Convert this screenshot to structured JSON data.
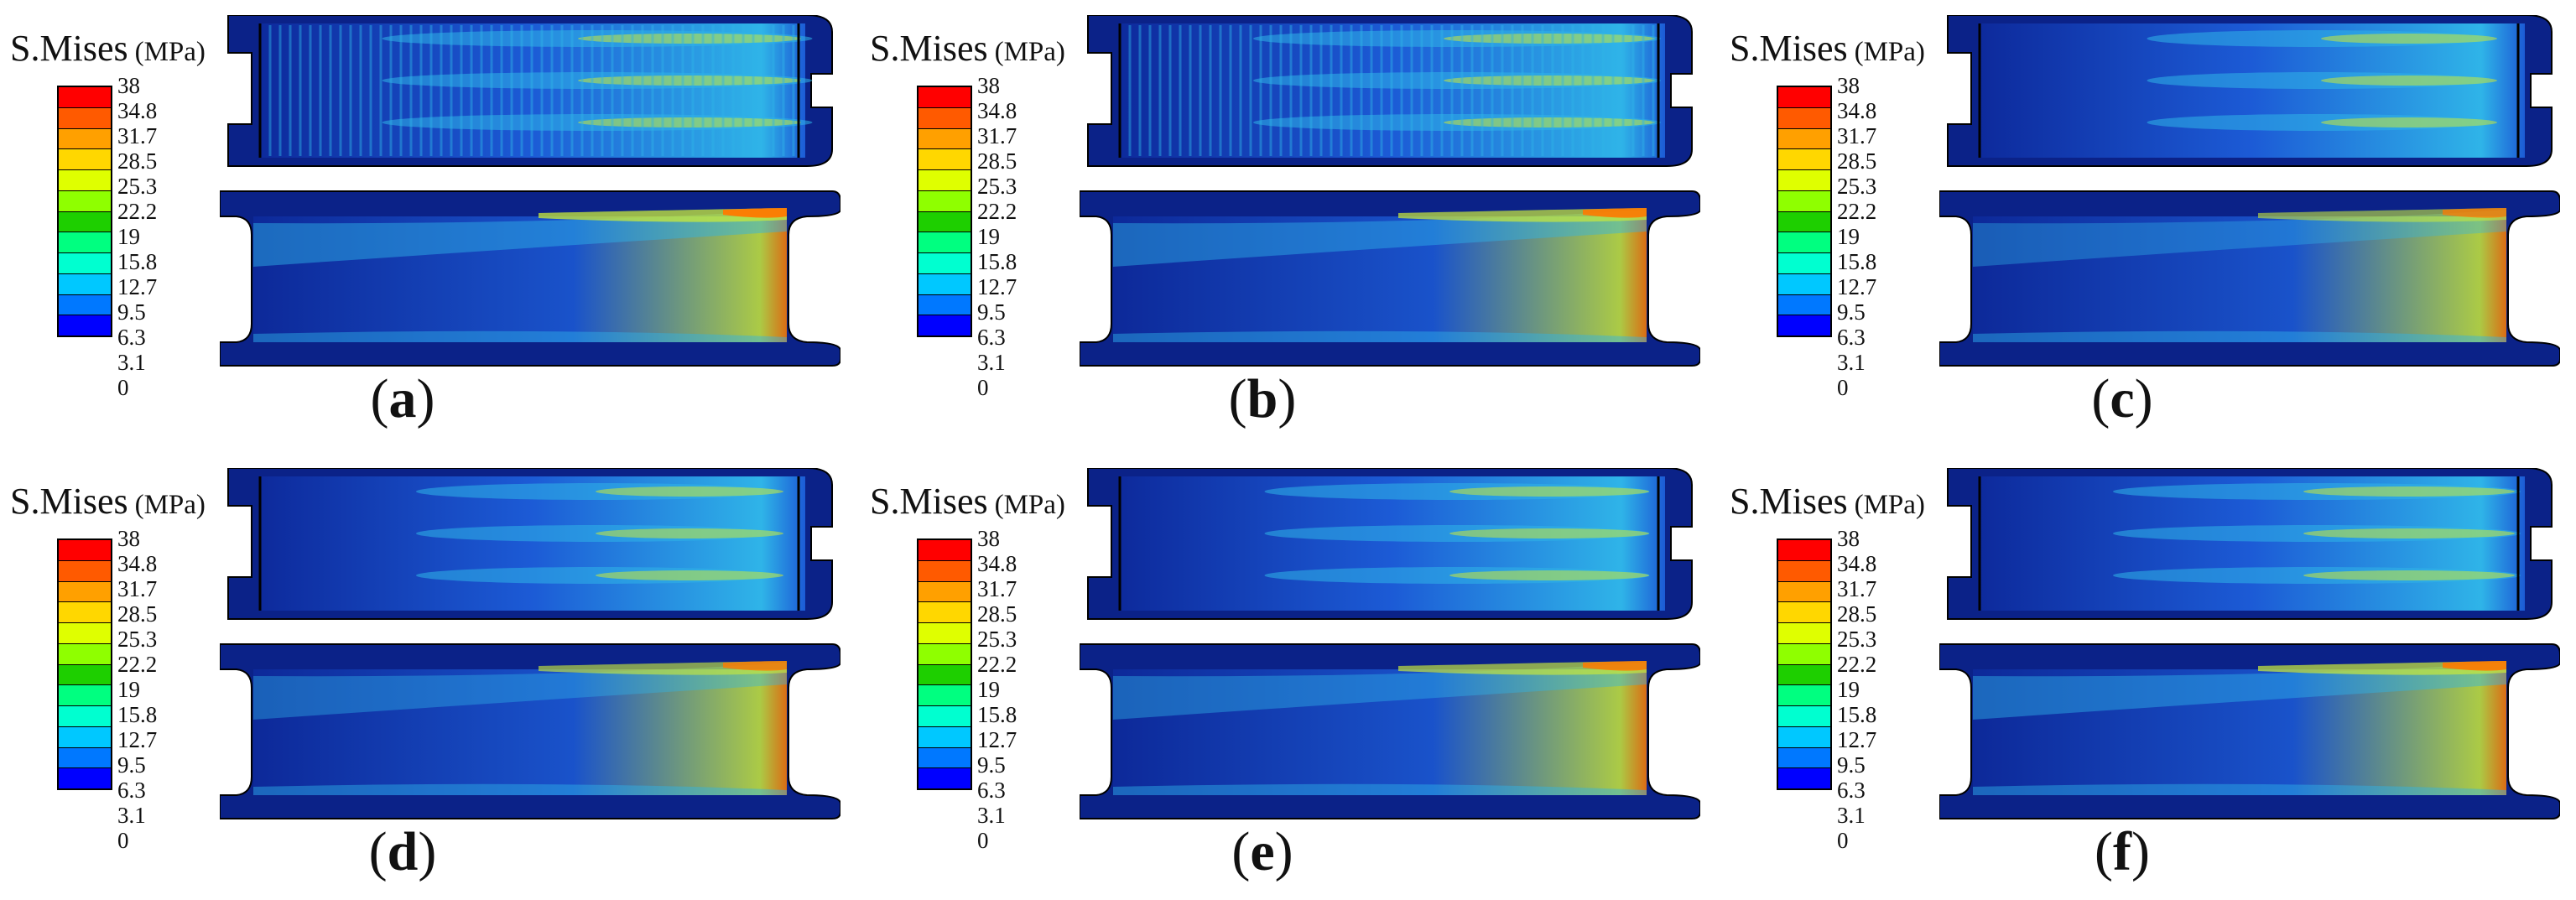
{
  "legend": {
    "title": "S.Mises",
    "unit": "(MPa)",
    "ticks": [
      "38",
      "34.8",
      "31.7",
      "28.5",
      "25.3",
      "22.2",
      "19",
      "15.8",
      "12.7",
      "9.5",
      "6.3",
      "3.1",
      "0"
    ],
    "colors": [
      "#ff0000",
      "#ff5a00",
      "#ffa000",
      "#ffd700",
      "#dfff00",
      "#8fff00",
      "#1ecf00",
      "#00ff80",
      "#00ffd0",
      "#00c8ff",
      "#0078ff",
      "#0000ff"
    ]
  },
  "colors": {
    "base": "#0d2a9c",
    "mid": "#1c5bd6",
    "light": "#2fb4e8",
    "hot": "#c8e83a",
    "peak": "#ff7a00",
    "frame": "#0b2288"
  },
  "panels": [
    {
      "label": "a",
      "heat": 0.95,
      "stripes": true
    },
    {
      "label": "b",
      "heat": 0.9,
      "stripes": true
    },
    {
      "label": "c",
      "heat": 0.75,
      "stripes": false
    },
    {
      "label": "d",
      "heat": 0.8,
      "stripes": false
    },
    {
      "label": "e",
      "heat": 0.85,
      "stripes": false
    },
    {
      "label": "f",
      "heat": 0.9,
      "stripes": false
    }
  ]
}
